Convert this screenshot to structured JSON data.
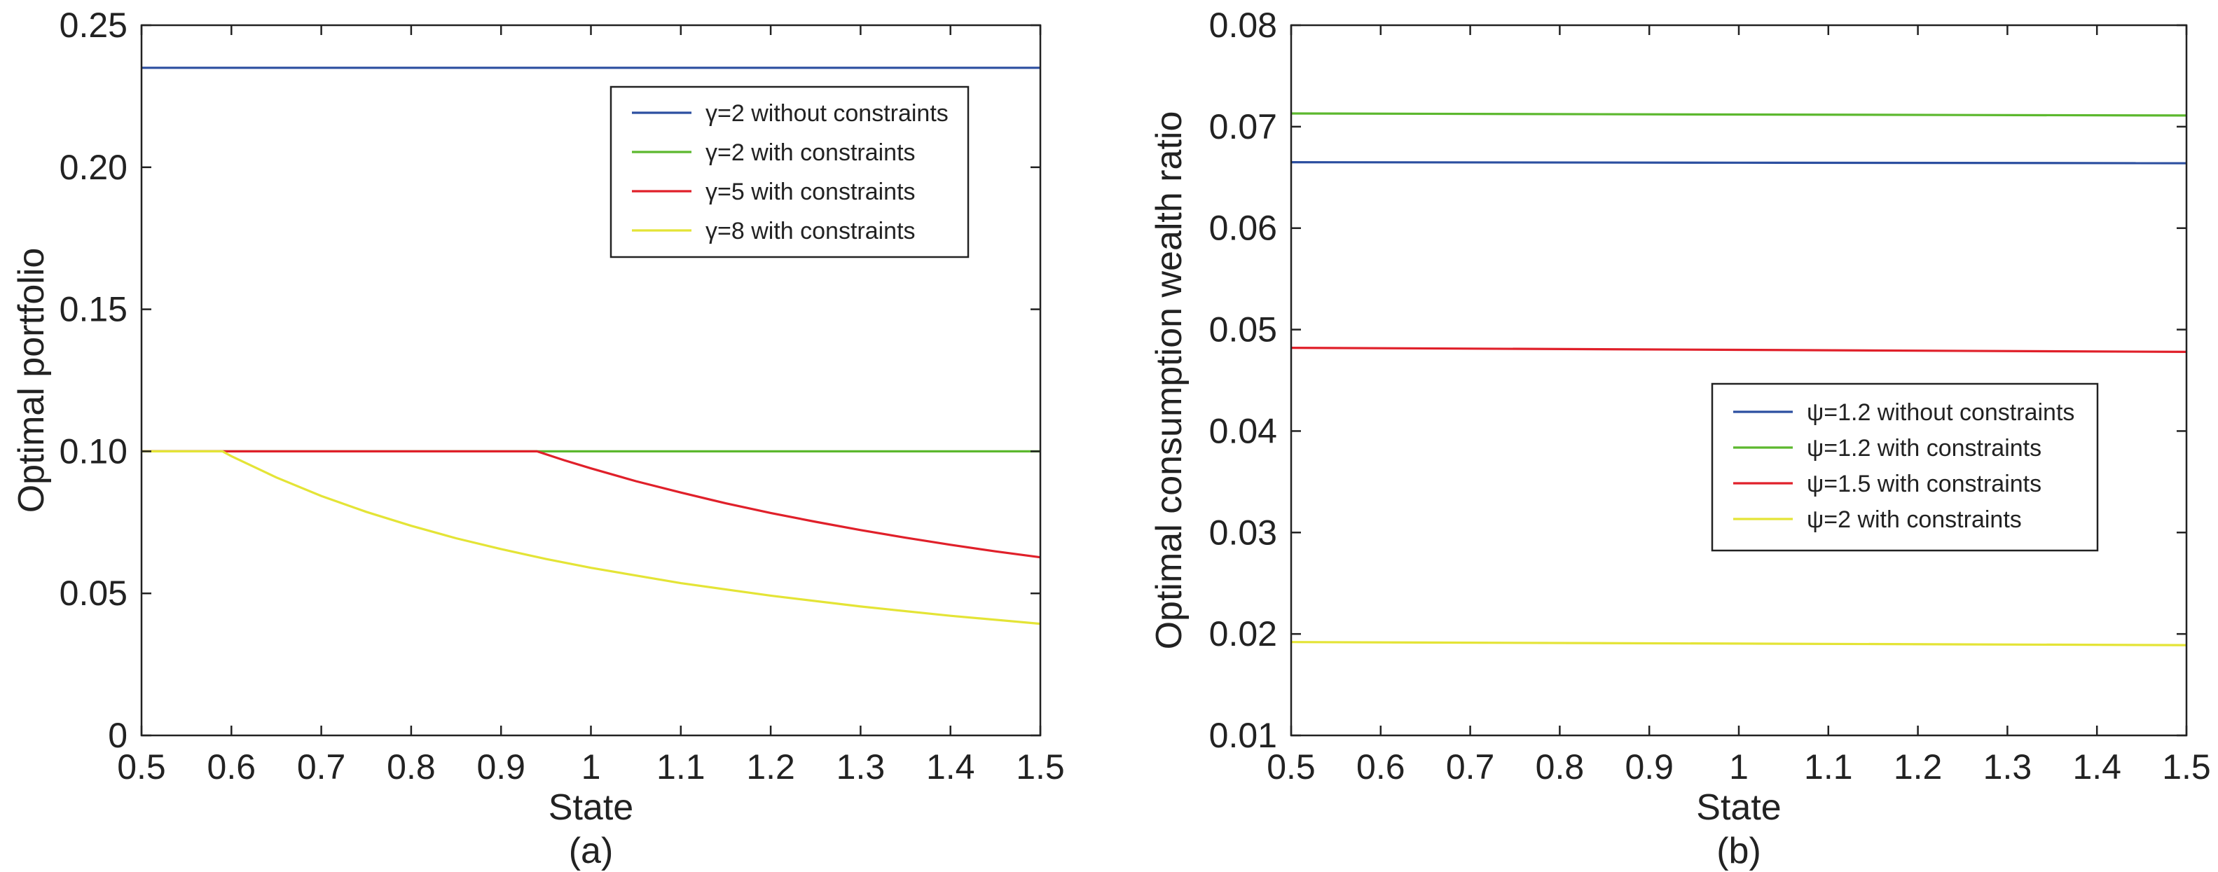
{
  "chart_data": [
    {
      "type": "line",
      "panel_label": "(a)",
      "xlabel": "State",
      "ylabel": "Optimal portfolio",
      "xlim": [
        0.5,
        1.5
      ],
      "ylim": [
        0,
        0.25
      ],
      "xticks": [
        "0.5",
        "0.6",
        "0.7",
        "0.8",
        "0.9",
        "1",
        "1.1",
        "1.2",
        "1.3",
        "1.4",
        "1.5"
      ],
      "yticks": [
        "0",
        "0.05",
        "0.10",
        "0.15",
        "0.20",
        "0.25"
      ],
      "grid": false,
      "legend_placement": "top-right",
      "series": [
        {
          "name": "γ=2 without constraints",
          "color": "#2c4fa0",
          "x": [
            0.5,
            1.5
          ],
          "y": [
            0.235,
            0.235
          ]
        },
        {
          "name": "γ=2 with constraints",
          "color": "#5cb82e",
          "x": [
            0.5,
            1.5
          ],
          "y": [
            0.1,
            0.1
          ]
        },
        {
          "name": "γ=5 with constraints",
          "color": "#e0202a",
          "x": [
            0.5,
            0.94,
            0.97,
            1.0,
            1.05,
            1.1,
            1.15,
            1.2,
            1.25,
            1.3,
            1.35,
            1.4,
            1.45,
            1.5
          ],
          "y": [
            0.1,
            0.1,
            0.0969,
            0.094,
            0.0895,
            0.0855,
            0.0817,
            0.0783,
            0.0752,
            0.0723,
            0.0696,
            0.0671,
            0.0648,
            0.0627
          ]
        },
        {
          "name": "γ=8 with constraints",
          "color": "#e4e436",
          "x": [
            0.5,
            0.59,
            0.6,
            0.65,
            0.7,
            0.75,
            0.8,
            0.85,
            0.9,
            0.95,
            1.0,
            1.1,
            1.2,
            1.3,
            1.4,
            1.5
          ],
          "y": [
            0.1,
            0.1,
            0.0983,
            0.0908,
            0.0843,
            0.0787,
            0.0738,
            0.0694,
            0.0656,
            0.0621,
            0.059,
            0.0536,
            0.0492,
            0.0454,
            0.0421,
            0.0393
          ]
        }
      ]
    },
    {
      "type": "line",
      "panel_label": "(b)",
      "xlabel": "State",
      "ylabel": "Optimal consumption wealth ratio",
      "xlim": [
        0.5,
        1.5
      ],
      "ylim": [
        0.01,
        0.08
      ],
      "xticks": [
        "0.5",
        "0.6",
        "0.7",
        "0.8",
        "0.9",
        "1",
        "1.1",
        "1.2",
        "1.3",
        "1.4",
        "1.5"
      ],
      "yticks": [
        "0.01",
        "0.02",
        "0.03",
        "0.04",
        "0.05",
        "0.06",
        "0.07",
        "0.08"
      ],
      "grid": false,
      "legend_placement": "center-right",
      "series": [
        {
          "name": "ψ=1.2 without constraints",
          "color": "#2c4fa0",
          "x": [
            0.5,
            1.0,
            1.5
          ],
          "y": [
            0.0665,
            0.06645,
            0.0664
          ]
        },
        {
          "name": "ψ=1.2 with constraints",
          "color": "#5cb82e",
          "x": [
            0.5,
            1.0,
            1.5
          ],
          "y": [
            0.0713,
            0.0712,
            0.0711
          ]
        },
        {
          "name": "ψ=1.5 with constraints",
          "color": "#e0202a",
          "x": [
            0.5,
            1.0,
            1.5
          ],
          "y": [
            0.0482,
            0.048,
            0.0478
          ]
        },
        {
          "name": "ψ=2 with constraints",
          "color": "#e4e436",
          "x": [
            0.5,
            1.0,
            1.5
          ],
          "y": [
            0.0192,
            0.01905,
            0.0189
          ]
        }
      ]
    }
  ]
}
